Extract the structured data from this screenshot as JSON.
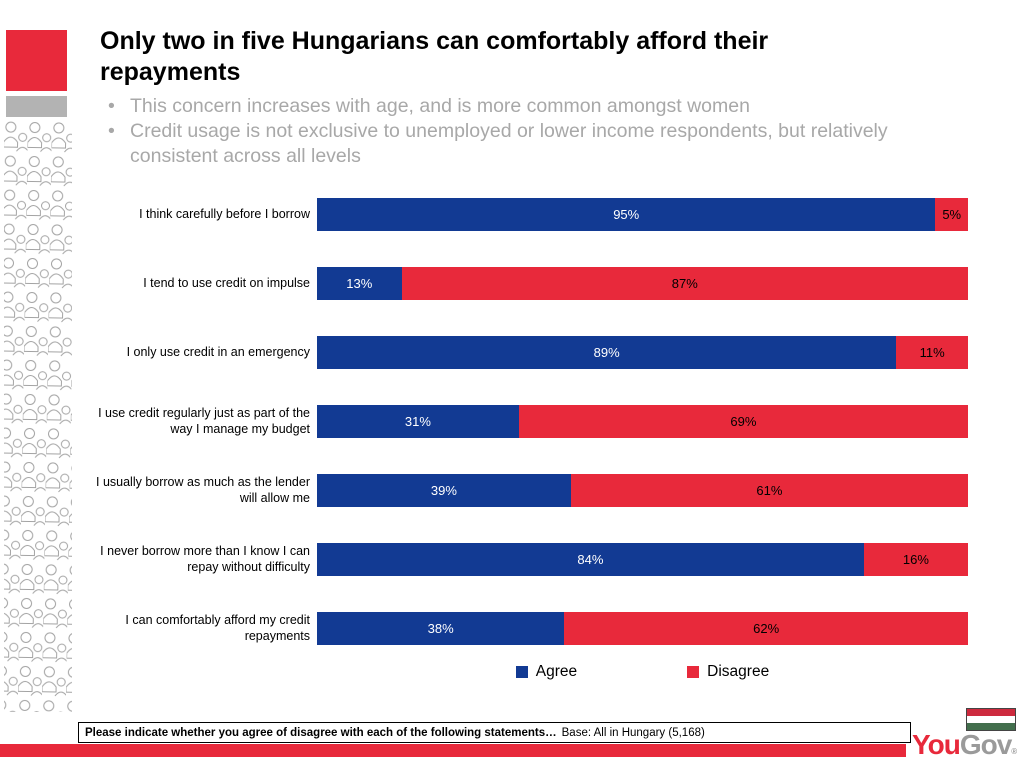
{
  "slide": {
    "title": "Only two in five Hungarians can comfortably afford their repayments",
    "bullets": [
      "This concern increases with age, and is more common amongst women",
      "Credit usage is not exclusive to unemployed or lower income respondents, but relatively consistent across all levels"
    ]
  },
  "chart_data": {
    "type": "bar",
    "orientation": "horizontal_stacked",
    "categories": [
      "I think carefully before I borrow",
      "I tend to use credit on impulse",
      "I only use credit in an emergency",
      "I use credit regularly just as part of the way I manage my budget",
      "I usually borrow as much as the lender will allow me",
      "I never borrow more than I know I can repay without difficulty",
      "I can comfortably afford my credit repayments"
    ],
    "series": [
      {
        "name": "Agree",
        "color": "#123a93",
        "text_color": "#ffffff",
        "values": [
          95,
          13,
          89,
          31,
          39,
          84,
          38
        ]
      },
      {
        "name": "Disagree",
        "color": "#e8293b",
        "text_color": "#000000",
        "values": [
          5,
          87,
          11,
          69,
          61,
          16,
          62
        ]
      }
    ],
    "value_suffix": "%",
    "xlim": [
      0,
      100
    ],
    "grid": false,
    "legend_position": "bottom-center"
  },
  "footer": {
    "question": "Please indicate whether you agree of disagree with each of the following statements…",
    "base": "Base: All in Hungary (5,168)"
  },
  "branding": {
    "logo_part1": "You",
    "logo_part2": "Gov",
    "registered_mark": "®",
    "flag_name": "hungary-flag",
    "flag_colors": [
      "#cd2a3e",
      "#ffffff",
      "#436f4d"
    ]
  },
  "colors": {
    "agree_blue": "#123a93",
    "disagree_red": "#e8293b",
    "accent_red": "#e8293b",
    "muted_gray": "#a8a8a8"
  }
}
